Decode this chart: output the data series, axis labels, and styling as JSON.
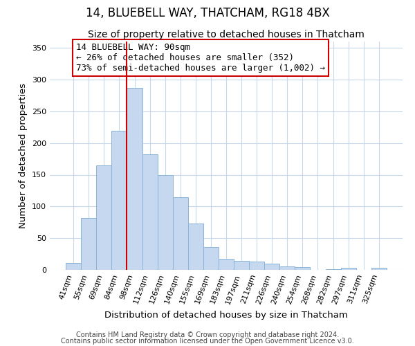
{
  "title": "14, BLUEBELL WAY, THATCHAM, RG18 4BX",
  "subtitle": "Size of property relative to detached houses in Thatcham",
  "xlabel": "Distribution of detached houses by size in Thatcham",
  "ylabel": "Number of detached properties",
  "bar_labels": [
    "41sqm",
    "55sqm",
    "69sqm",
    "84sqm",
    "98sqm",
    "112sqm",
    "126sqm",
    "140sqm",
    "155sqm",
    "169sqm",
    "183sqm",
    "197sqm",
    "211sqm",
    "226sqm",
    "240sqm",
    "254sqm",
    "268sqm",
    "282sqm",
    "297sqm",
    "311sqm",
    "325sqm"
  ],
  "bar_values": [
    11,
    82,
    165,
    219,
    287,
    182,
    149,
    115,
    73,
    36,
    18,
    14,
    13,
    10,
    5,
    4,
    0,
    1,
    3,
    0,
    3
  ],
  "bar_color": "#c5d8f0",
  "bar_edge_color": "#8ab4d8",
  "vline_color": "#cc0000",
  "vline_pos": 3.5,
  "ylim": [
    0,
    360
  ],
  "yticks": [
    0,
    50,
    100,
    150,
    200,
    250,
    300,
    350
  ],
  "annotation_title": "14 BLUEBELL WAY: 90sqm",
  "annotation_line1": "← 26% of detached houses are smaller (352)",
  "annotation_line2": "73% of semi-detached houses are larger (1,002) →",
  "annotation_box_color": "#ffffff",
  "annotation_box_edge": "#cc0000",
  "footer1": "Contains HM Land Registry data © Crown copyright and database right 2024.",
  "footer2": "Contains public sector information licensed under the Open Government Licence v3.0.",
  "background_color": "#ffffff",
  "grid_color": "#c8d8e8",
  "title_fontsize": 12,
  "subtitle_fontsize": 10,
  "axis_label_fontsize": 9.5,
  "tick_fontsize": 8,
  "annotation_fontsize": 9,
  "footer_fontsize": 7
}
